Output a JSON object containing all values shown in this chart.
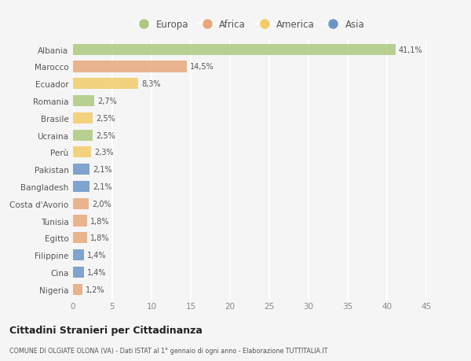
{
  "countries": [
    "Albania",
    "Marocco",
    "Ecuador",
    "Romania",
    "Brasile",
    "Ucraina",
    "Perù",
    "Pakistan",
    "Bangladesh",
    "Costa d'Avorio",
    "Tunisia",
    "Egitto",
    "Filippine",
    "Cina",
    "Nigeria"
  ],
  "values": [
    41.1,
    14.5,
    8.3,
    2.7,
    2.5,
    2.5,
    2.3,
    2.1,
    2.1,
    2.0,
    1.8,
    1.8,
    1.4,
    1.4,
    1.2
  ],
  "labels": [
    "41,1%",
    "14,5%",
    "8,3%",
    "2,7%",
    "2,5%",
    "2,5%",
    "2,3%",
    "2,1%",
    "2,1%",
    "2,0%",
    "1,8%",
    "1,8%",
    "1,4%",
    "1,4%",
    "1,2%"
  ],
  "continents": [
    "Europa",
    "Africa",
    "America",
    "Europa",
    "America",
    "Europa",
    "America",
    "Asia",
    "Asia",
    "Africa",
    "Africa",
    "Africa",
    "Asia",
    "Asia",
    "Africa"
  ],
  "colors": {
    "Europa": "#adc980",
    "Africa": "#e8a87c",
    "America": "#f2cc6a",
    "Asia": "#6b96c8"
  },
  "legend_order": [
    "Europa",
    "Africa",
    "America",
    "Asia"
  ],
  "title": "Cittadini Stranieri per Cittadinanza",
  "subtitle": "COMUNE DI OLGIATE OLONA (VA) - Dati ISTAT al 1° gennaio di ogni anno - Elaborazione TUTTITALIA.IT",
  "xlim": [
    0,
    45
  ],
  "xticks": [
    0,
    5,
    10,
    15,
    20,
    25,
    30,
    35,
    40,
    45
  ],
  "background_color": "#f5f5f5",
  "grid_color": "#ffffff",
  "bar_height": 0.65
}
